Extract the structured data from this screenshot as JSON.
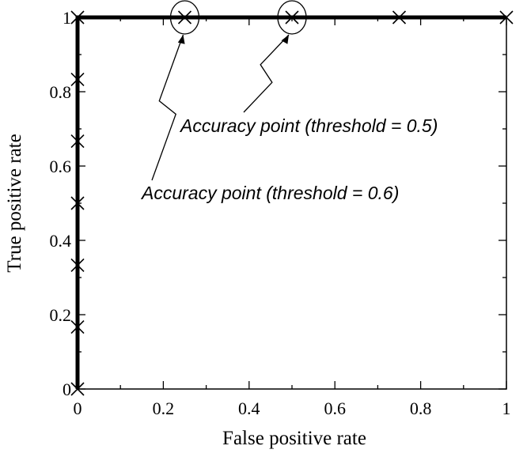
{
  "chart_data": {
    "type": "line",
    "xlabel": "False positive rate",
    "ylabel": "True positive rate",
    "xlim": [
      0,
      1
    ],
    "ylim": [
      0,
      1
    ],
    "grid": false,
    "x_ticks": [
      "0",
      "0.2",
      "0.4",
      "0.6",
      "0.8",
      "1"
    ],
    "y_ticks": [
      "0",
      "0.2",
      "0.4",
      "0.6",
      "0.8",
      "1"
    ],
    "series": [
      {
        "marker": "x",
        "points": [
          {
            "x": 0,
            "y": 0
          },
          {
            "x": 0,
            "y": 0.167
          },
          {
            "x": 0,
            "y": 0.333
          },
          {
            "x": 0,
            "y": 0.5
          },
          {
            "x": 0,
            "y": 0.667
          },
          {
            "x": 0,
            "y": 0.833
          },
          {
            "x": 0,
            "y": 1
          },
          {
            "x": 0.25,
            "y": 1
          },
          {
            "x": 0.5,
            "y": 1
          },
          {
            "x": 0.75,
            "y": 1
          },
          {
            "x": 1,
            "y": 1
          }
        ]
      }
    ],
    "annotations": [
      {
        "text": "Accuracy point (threshold = 0.5)",
        "x": 0.5,
        "y": 1
      },
      {
        "text": "Accuracy point (threshold = 0.6)",
        "x": 0.25,
        "y": 1
      }
    ]
  }
}
